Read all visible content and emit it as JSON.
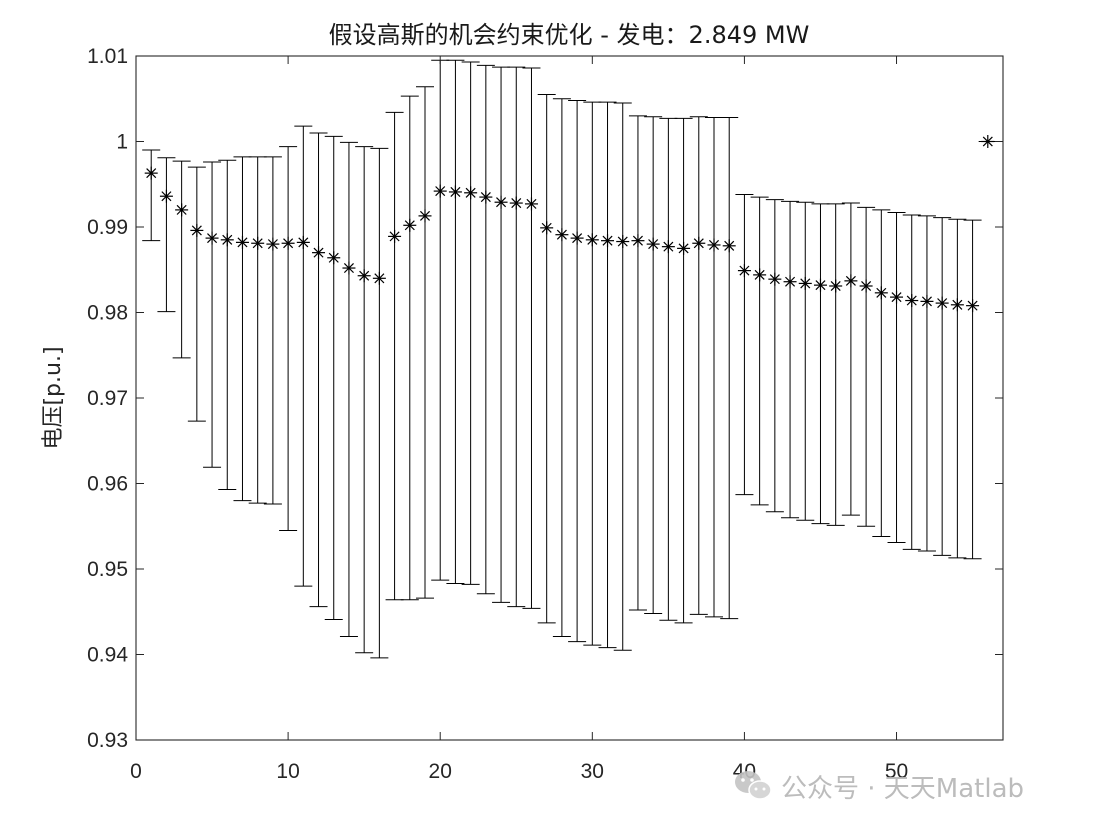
{
  "chart_data": {
    "type": "errorbar",
    "title": "假设高斯的机会约束优化 - 发电：2.849 MW",
    "xlabel": "",
    "ylabel": "电压[p.u.]",
    "xlim": [
      0,
      57
    ],
    "ylim": [
      0.93,
      1.01
    ],
    "xticks": [
      0,
      10,
      20,
      30,
      40,
      50
    ],
    "yticks": [
      0.93,
      0.94,
      0.95,
      0.96,
      0.97,
      0.98,
      0.99,
      1.0,
      1.01
    ],
    "xtick_labels": [
      "0",
      "10",
      "20",
      "30",
      "40",
      "50"
    ],
    "ytick_labels": [
      "0.93",
      "0.94",
      "0.95",
      "0.96",
      "0.97",
      "0.98",
      "0.99",
      "1",
      "1.01"
    ],
    "grid": false,
    "marker": "asterisk",
    "color": "#000000",
    "series": [
      {
        "x": [
          1,
          2,
          3,
          4,
          5,
          6,
          7,
          8,
          9,
          10,
          11,
          12,
          13,
          14,
          15,
          16,
          17,
          18,
          19,
          20,
          21,
          22,
          23,
          24,
          25,
          26,
          27,
          28,
          29,
          30,
          31,
          32,
          33,
          34,
          35,
          36,
          37,
          38,
          39,
          40,
          41,
          42,
          43,
          44,
          45,
          46,
          47,
          48,
          49,
          50,
          51,
          52,
          53,
          54,
          55,
          56
        ],
        "y": [
          0.9963,
          0.9936,
          0.992,
          0.9896,
          0.9887,
          0.9885,
          0.9882,
          0.9881,
          0.988,
          0.9881,
          0.9882,
          0.987,
          0.9864,
          0.9852,
          0.9843,
          0.984,
          0.9889,
          0.9902,
          0.9913,
          0.9942,
          0.9941,
          0.994,
          0.9935,
          0.9929,
          0.9928,
          0.9927,
          0.9899,
          0.9891,
          0.9887,
          0.9885,
          0.9884,
          0.9883,
          0.9884,
          0.988,
          0.9877,
          0.9875,
          0.9881,
          0.9879,
          0.9878,
          0.9849,
          0.9844,
          0.9839,
          0.9836,
          0.9834,
          0.9832,
          0.9831,
          0.9837,
          0.9831,
          0.9823,
          0.9818,
          0.9814,
          0.9813,
          0.9811,
          0.9809,
          0.9808,
          1.0
        ],
        "upper": [
          0.999,
          0.9981,
          0.9977,
          0.997,
          0.9976,
          0.9978,
          0.9982,
          0.9982,
          0.9982,
          0.9994,
          1.0018,
          1.001,
          1.0006,
          0.9999,
          0.9994,
          0.9992,
          1.0034,
          1.0053,
          1.0064,
          1.0095,
          1.0095,
          1.0093,
          1.0089,
          1.0087,
          1.0087,
          1.0086,
          1.0055,
          1.005,
          1.0048,
          1.0046,
          1.0046,
          1.0045,
          1.003,
          1.0029,
          1.0027,
          1.0027,
          1.0029,
          1.0028,
          1.0028,
          0.9938,
          0.9935,
          0.9932,
          0.993,
          0.9929,
          0.9927,
          0.9927,
          0.9928,
          0.9923,
          0.992,
          0.9917,
          0.9914,
          0.9913,
          0.9911,
          0.9909,
          0.9908,
          1.0
        ],
        "lower": [
          0.9884,
          0.9801,
          0.9747,
          0.9673,
          0.9619,
          0.9593,
          0.958,
          0.9577,
          0.9576,
          0.9545,
          0.948,
          0.9456,
          0.9441,
          0.9421,
          0.9402,
          0.9396,
          0.9464,
          0.9464,
          0.9466,
          0.9487,
          0.9483,
          0.9482,
          0.9471,
          0.9461,
          0.9456,
          0.9454,
          0.9437,
          0.9421,
          0.9415,
          0.9411,
          0.9408,
          0.9405,
          0.9452,
          0.9448,
          0.944,
          0.9437,
          0.9447,
          0.9444,
          0.9442,
          0.9587,
          0.9575,
          0.9567,
          0.956,
          0.9557,
          0.9553,
          0.9551,
          0.9563,
          0.955,
          0.9538,
          0.9531,
          0.9523,
          0.9521,
          0.9516,
          0.9513,
          0.9512,
          1.0
        ]
      }
    ]
  },
  "watermark": {
    "text": "公众号 · 天天Matlab",
    "icon": "wechat-icon"
  }
}
